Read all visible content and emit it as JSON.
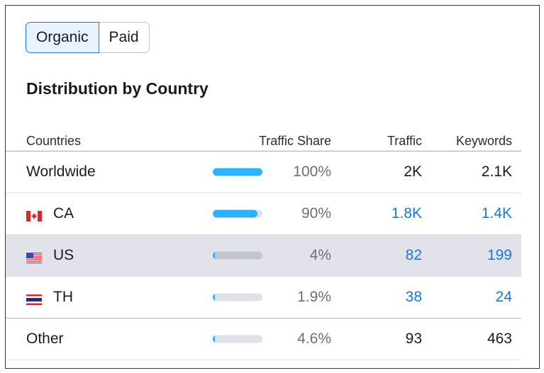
{
  "toggle": {
    "options": [
      "Organic",
      "Paid"
    ],
    "selected": "Organic"
  },
  "title": "Distribution by Country",
  "columns": {
    "countries": "Countries",
    "share": "Traffic Share",
    "traffic": "Traffic",
    "keywords": "Keywords"
  },
  "rows": [
    {
      "name": "Worldwide",
      "flag": "",
      "share": "100%",
      "share_value": 100,
      "traffic": "2K",
      "keywords": "2.1K",
      "link": false
    },
    {
      "name": "CA",
      "flag": "ca",
      "share": "90%",
      "share_value": 90,
      "traffic": "1.8K",
      "keywords": "1.4K",
      "link": true
    },
    {
      "name": "US",
      "flag": "us",
      "share": "4%",
      "share_value": 4,
      "traffic": "82",
      "keywords": "199",
      "link": true
    },
    {
      "name": "TH",
      "flag": "th",
      "share": "1.9%",
      "share_value": 1.9,
      "traffic": "38",
      "keywords": "24",
      "link": true
    },
    {
      "name": "Other",
      "flag": "",
      "share": "4.6%",
      "share_value": 4.6,
      "traffic": "93",
      "keywords": "463",
      "link": false
    }
  ],
  "colors": {
    "accent": "#1a78d6",
    "bar": "#2bb3ff"
  }
}
